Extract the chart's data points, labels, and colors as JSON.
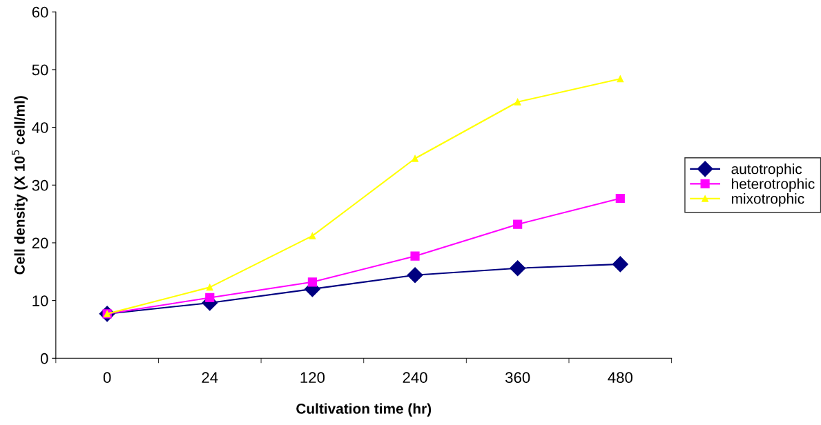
{
  "chart_data": {
    "type": "line",
    "xlabel": "Cultivation time (hr)",
    "ylabel": "Cell density (X 10$^{5}$ cell/ml)",
    "categories": [
      "0",
      "24",
      "120",
      "240",
      "360",
      "480"
    ],
    "series": [
      {
        "name": "autotrophic",
        "color": "#000080",
        "marker": "diamond",
        "values": [
          7.7,
          9.6,
          12.0,
          14.4,
          15.6,
          16.3
        ]
      },
      {
        "name": "heterotrophic",
        "color": "#ff00ff",
        "marker": "square",
        "values": [
          7.7,
          10.5,
          13.2,
          17.7,
          23.2,
          27.7
        ]
      },
      {
        "name": "mixotrophic",
        "color": "#ffff00",
        "marker": "triangle",
        "values": [
          7.7,
          12.3,
          21.2,
          34.6,
          44.4,
          48.4
        ]
      }
    ],
    "ylim": [
      0,
      60
    ],
    "yticks": [
      0,
      10,
      20,
      30,
      40,
      50,
      60
    ],
    "grid": false,
    "legend": "right",
    "line_style": "solid"
  }
}
